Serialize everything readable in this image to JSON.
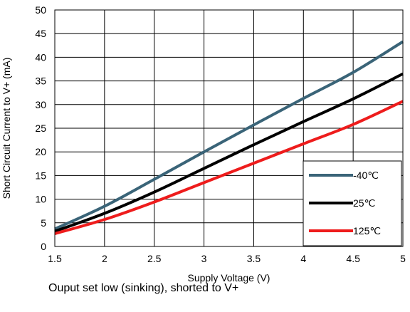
{
  "chart_data": {
    "type": "line",
    "title": "",
    "xlabel": "Supply Voltage (V)",
    "ylabel": "Short Circuit Current to V+ (mA)",
    "xlim": [
      1.5,
      5
    ],
    "ylim": [
      0,
      50
    ],
    "x_ticks": [
      "1.5",
      "2",
      "2.5",
      "3",
      "3.5",
      "4",
      "4.5",
      "5"
    ],
    "y_ticks": [
      "0",
      "5",
      "10",
      "15",
      "20",
      "25",
      "30",
      "35",
      "40",
      "45",
      "50"
    ],
    "grid": true,
    "legend_position": "bottom-right",
    "series": [
      {
        "name": "-40℃",
        "color": "#3a6478",
        "x": [
          1.5,
          2.0,
          2.5,
          3.0,
          3.5,
          4.0,
          4.5,
          5.0
        ],
        "y": [
          3.7,
          8.5,
          14.2,
          20.0,
          25.7,
          31.3,
          36.8,
          43.3
        ]
      },
      {
        "name": "25℃",
        "color": "#000000",
        "x": [
          1.5,
          2.0,
          2.5,
          3.0,
          3.5,
          4.0,
          4.5,
          5.0
        ],
        "y": [
          3.2,
          7.0,
          11.5,
          16.5,
          21.5,
          26.4,
          31.2,
          36.5
        ]
      },
      {
        "name": "125℃",
        "color": "#ee1c1c",
        "x": [
          1.5,
          2.0,
          2.5,
          3.0,
          3.5,
          4.0,
          4.5,
          5.0
        ],
        "y": [
          2.7,
          5.7,
          9.4,
          13.5,
          17.6,
          21.7,
          25.8,
          30.7
        ]
      }
    ]
  },
  "caption": "Ouput set low (sinking), shorted to V+"
}
